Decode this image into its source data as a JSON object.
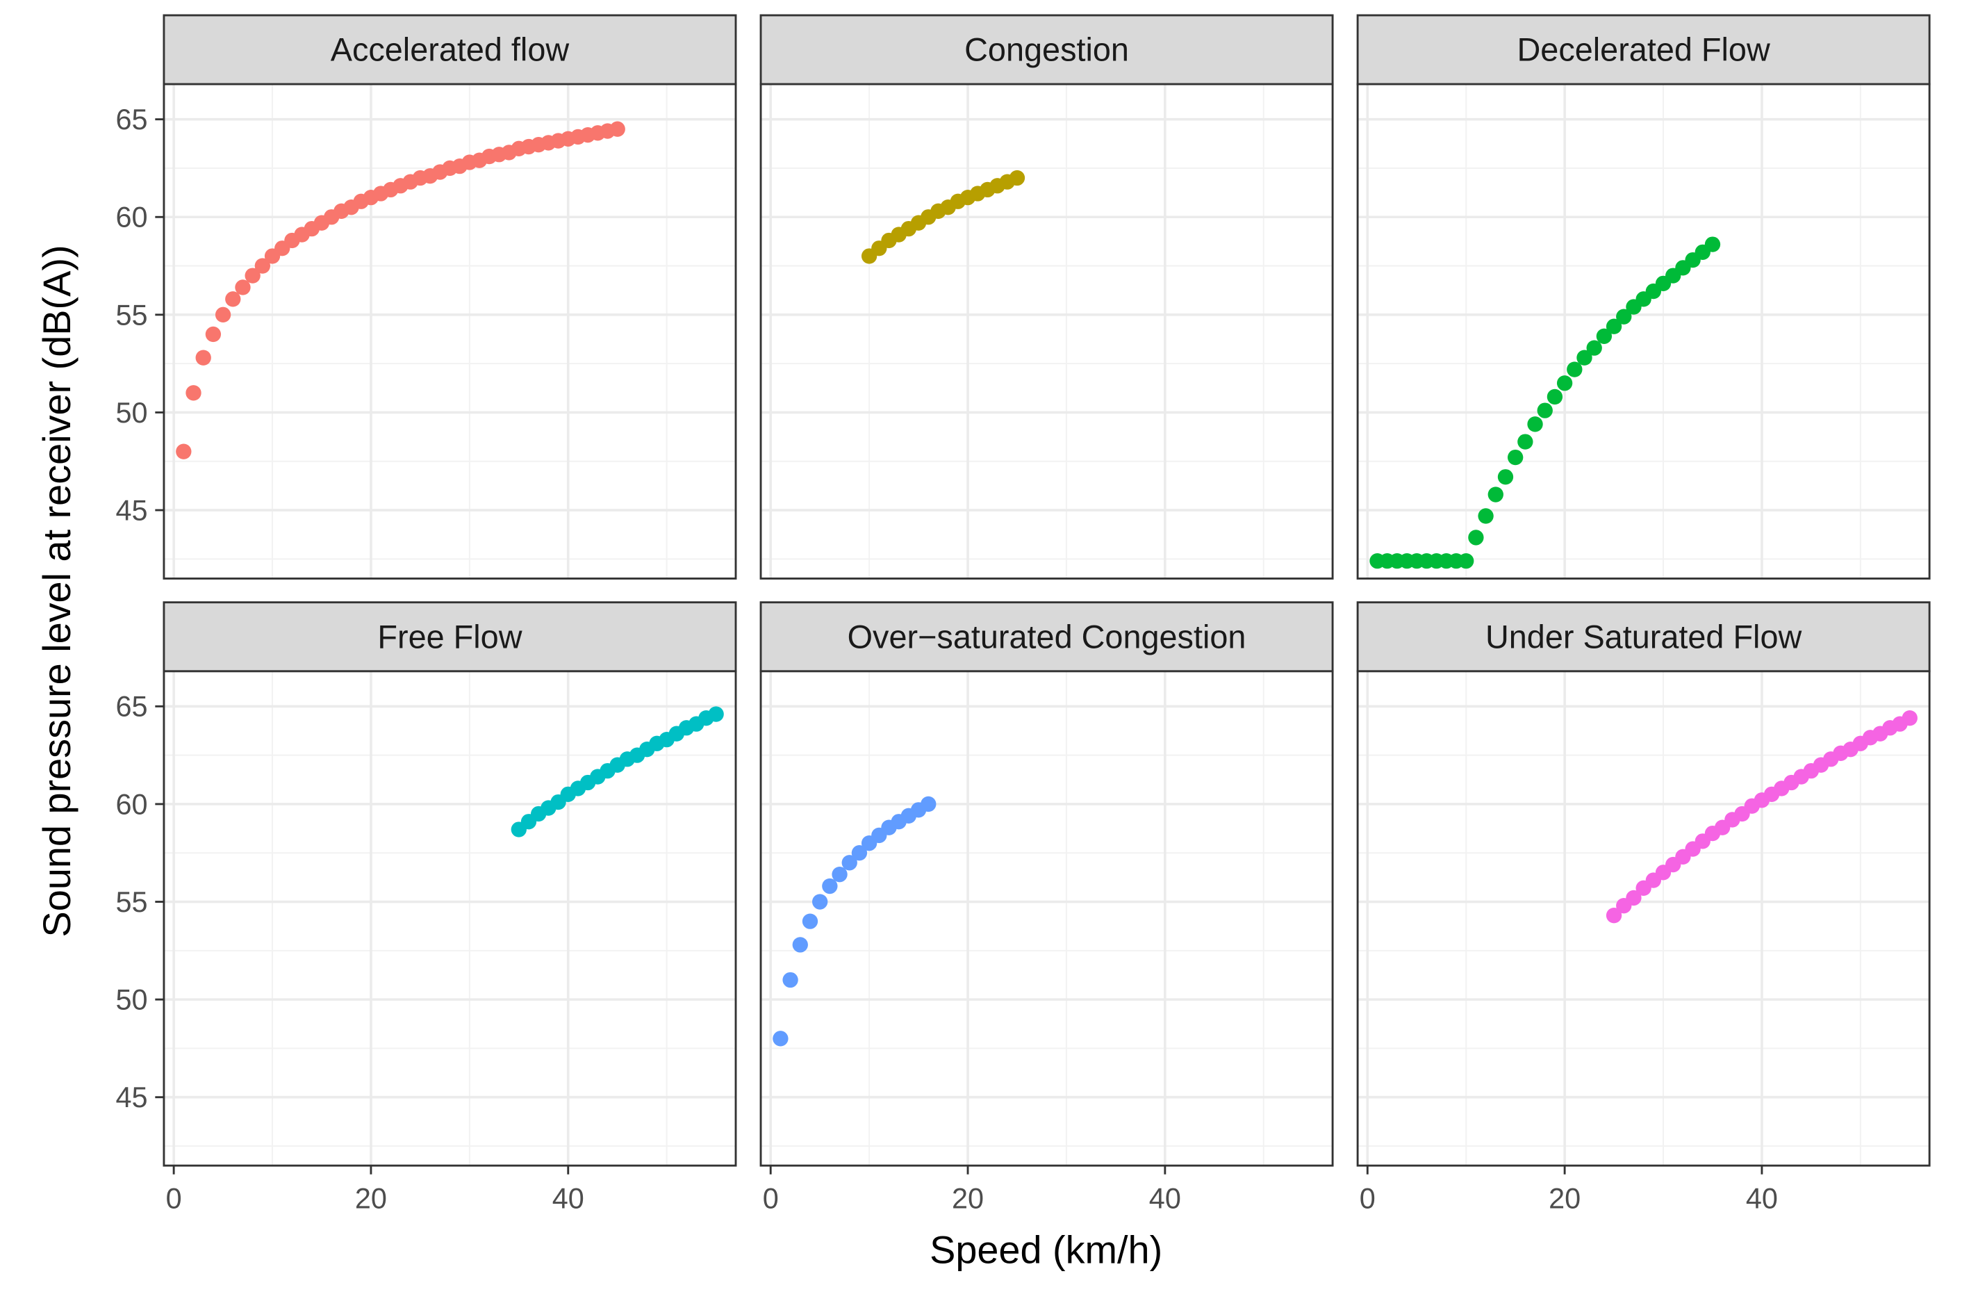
{
  "chart_data": {
    "type": "scatter",
    "layout": "facet-grid",
    "xlabel": "Speed (km/h)",
    "ylabel": "Sound pressure level at receiver (dB(A))",
    "xlim": [
      -1,
      57
    ],
    "ylim": [
      41.5,
      66.8
    ],
    "x_ticks": [
      0,
      20,
      40
    ],
    "x_minor_ticks": [
      10,
      30,
      50
    ],
    "y_ticks": [
      45,
      50,
      55,
      60,
      65
    ],
    "y_minor_ticks": [
      42.5,
      47.5,
      52.5,
      57.5,
      62.5
    ],
    "grid": true,
    "panels": [
      {
        "title": "Accelerated flow",
        "color": "#F8766D",
        "x": [
          1,
          2,
          3,
          4,
          5,
          6,
          7,
          8,
          9,
          10,
          11,
          12,
          13,
          14,
          15,
          16,
          17,
          18,
          19,
          20,
          21,
          22,
          23,
          24,
          25,
          26,
          27,
          28,
          29,
          30,
          31,
          32,
          33,
          34,
          35,
          36,
          37,
          38,
          39,
          40,
          41,
          42,
          43,
          44,
          45
        ],
        "y": [
          48.0,
          51.0,
          52.8,
          54.0,
          55.0,
          55.8,
          56.4,
          57.0,
          57.5,
          58.0,
          58.4,
          58.8,
          59.1,
          59.4,
          59.7,
          60.0,
          60.3,
          60.5,
          60.8,
          61.0,
          61.2,
          61.4,
          61.6,
          61.8,
          62.0,
          62.1,
          62.3,
          62.5,
          62.6,
          62.8,
          62.9,
          63.1,
          63.2,
          63.3,
          63.5,
          63.6,
          63.7,
          63.8,
          63.9,
          64.0,
          64.1,
          64.2,
          64.3,
          64.4,
          64.5
        ]
      },
      {
        "title": "Congestion",
        "color": "#B79F00",
        "x": [
          10,
          11,
          12,
          13,
          14,
          15,
          16,
          17,
          18,
          19,
          20,
          21,
          22,
          23,
          24,
          25
        ],
        "y": [
          58.0,
          58.4,
          58.8,
          59.1,
          59.4,
          59.7,
          60.0,
          60.3,
          60.5,
          60.8,
          61.0,
          61.2,
          61.4,
          61.6,
          61.8,
          62.0
        ]
      },
      {
        "title": "Decelerated Flow",
        "color": "#00BA38",
        "x": [
          1,
          2,
          3,
          4,
          5,
          6,
          7,
          8,
          9,
          10,
          11,
          12,
          13,
          14,
          15,
          16,
          17,
          18,
          19,
          20,
          21,
          22,
          23,
          24,
          25,
          26,
          27,
          28,
          29,
          30,
          31,
          32,
          33,
          34,
          35
        ],
        "y": [
          42.4,
          42.4,
          42.4,
          42.4,
          42.4,
          42.4,
          42.4,
          42.4,
          42.4,
          42.4,
          43.6,
          44.7,
          45.8,
          46.7,
          47.7,
          48.5,
          49.4,
          50.1,
          50.8,
          51.5,
          52.2,
          52.8,
          53.3,
          53.9,
          54.4,
          54.9,
          55.4,
          55.8,
          56.2,
          56.6,
          57.0,
          57.4,
          57.8,
          58.2,
          58.6
        ]
      },
      {
        "title": "Free Flow",
        "color": "#00BFC4",
        "x": [
          35,
          36,
          37,
          38,
          39,
          40,
          41,
          42,
          43,
          44,
          45,
          46,
          47,
          48,
          49,
          50,
          51,
          52,
          53,
          54,
          55
        ],
        "y": [
          58.7,
          59.1,
          59.5,
          59.8,
          60.1,
          60.5,
          60.8,
          61.1,
          61.4,
          61.7,
          62.0,
          62.3,
          62.5,
          62.8,
          63.1,
          63.3,
          63.6,
          63.9,
          64.1,
          64.4,
          64.6
        ]
      },
      {
        "title": "Over−saturated Congestion",
        "color": "#619CFF",
        "x": [
          1,
          2,
          3,
          4,
          5,
          6,
          7,
          8,
          9,
          10,
          11,
          12,
          13,
          14,
          15,
          16
        ],
        "y": [
          48.0,
          51.0,
          52.8,
          54.0,
          55.0,
          55.8,
          56.4,
          57.0,
          57.5,
          58.0,
          58.4,
          58.8,
          59.1,
          59.4,
          59.7,
          60.0
        ]
      },
      {
        "title": "Under Saturated Flow",
        "color": "#F564E3",
        "x": [
          25,
          26,
          27,
          28,
          29,
          30,
          31,
          32,
          33,
          34,
          35,
          36,
          37,
          38,
          39,
          40,
          41,
          42,
          43,
          44,
          45,
          46,
          47,
          48,
          49,
          50,
          51,
          52,
          53,
          54,
          55
        ],
        "y": [
          54.3,
          54.8,
          55.2,
          55.7,
          56.1,
          56.5,
          56.9,
          57.3,
          57.7,
          58.1,
          58.5,
          58.8,
          59.2,
          59.5,
          59.9,
          60.2,
          60.5,
          60.8,
          61.1,
          61.4,
          61.7,
          62.0,
          62.3,
          62.6,
          62.8,
          63.1,
          63.4,
          63.6,
          63.9,
          64.1,
          64.4
        ]
      }
    ]
  }
}
